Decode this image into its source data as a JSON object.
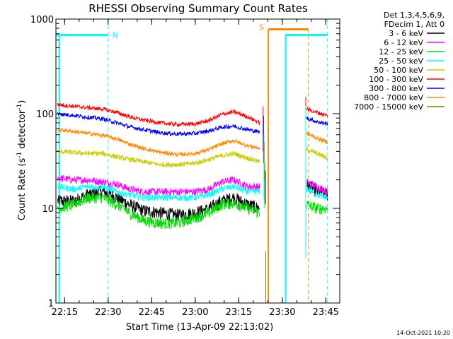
{
  "chart_data": {
    "type": "line",
    "title": "RHESSI Observing Summary Count Rates",
    "xlabel": "Start Time (13-Apr-09 22:13:02)",
    "ylabel": "Count Rate (s",
    "ylabel_sup1": "-1",
    "ylabel_mid": " detector",
    "ylabel_sup2": "-1",
    "ylabel_end": ")",
    "yscale": "log",
    "ylim": [
      1,
      1000
    ],
    "xlim_minutes": [
      22.2,
      23.83
    ],
    "x_ticks": [
      {
        "label": "22:15",
        "value": 22.25
      },
      {
        "label": "22:30",
        "value": 22.5
      },
      {
        "label": "22:45",
        "value": 22.75
      },
      {
        "label": "23:00",
        "value": 23.0
      },
      {
        "label": "23:15",
        "value": 23.25
      },
      {
        "label": "23:30",
        "value": 23.5
      },
      {
        "label": "23:45",
        "value": 23.75
      }
    ],
    "y_ticks": [
      {
        "label": "1",
        "value": 1
      },
      {
        "label": "10",
        "value": 10
      },
      {
        "label": "100",
        "value": 100
      },
      {
        "label": "1000",
        "value": 1000
      }
    ],
    "legend_header": [
      "Det 1,3,4,5,6,9,",
      "FDecim 1, Att 0"
    ],
    "series": [
      {
        "name": "3 - 6 keV",
        "color": "#000000",
        "segments": [
          {
            "x": [
              22.21,
              22.3,
              22.38,
              22.47,
              22.55,
              22.62,
              22.7,
              22.8,
              22.9,
              23.0,
              23.08,
              23.15,
              23.22,
              23.3,
              23.37
            ],
            "y": [
              12,
              12,
              14,
              15,
              13,
              11,
              9.5,
              9,
              8.5,
              9,
              10,
              12,
              13,
              11,
              10
            ]
          },
          {
            "x": [
              23.64,
              23.7,
              23.76
            ],
            "y": [
              18,
              15,
              14
            ]
          }
        ]
      },
      {
        "name": "6 - 12 keV",
        "color": "#ff00ff",
        "segments": [
          {
            "x": [
              22.21,
              22.3,
              22.38,
              22.47,
              22.55,
              22.62,
              22.7,
              22.8,
              22.9,
              23.0,
              23.08,
              23.15,
              23.22,
              23.3,
              23.37
            ],
            "y": [
              21,
              20,
              20,
              19,
              18,
              16,
              15,
              15,
              15,
              15,
              16,
              19,
              20,
              17,
              17
            ]
          },
          {
            "x": [
              23.64,
              23.7,
              23.76
            ],
            "y": [
              19,
              17,
              15
            ]
          }
        ]
      },
      {
        "name": "12 - 25 keV",
        "color": "#00dd00",
        "segments": [
          {
            "x": [
              22.21,
              22.3,
              22.38,
              22.47,
              22.55,
              22.62,
              22.7,
              22.8,
              22.9,
              23.0,
              23.08,
              23.15,
              23.22,
              23.3,
              23.37
            ],
            "y": [
              10,
              11,
              13,
              13,
              11,
              9,
              7.5,
              7,
              7,
              8,
              9,
              11,
              11.5,
              10,
              9
            ]
          },
          {
            "x": [
              23.64,
              23.7,
              23.76
            ],
            "y": [
              11,
              10,
              10
            ]
          }
        ]
      },
      {
        "name": "25 - 50 keV",
        "color": "#00ffff",
        "segments": [
          {
            "x": [
              22.21,
              22.3,
              22.38,
              22.47,
              22.55,
              22.62,
              22.7,
              22.8,
              22.9,
              23.0,
              23.08,
              23.15,
              23.22,
              23.3,
              23.37
            ],
            "y": [
              17,
              16,
              17,
              17,
              15,
              14,
              13,
              13,
              13,
              13,
              14,
              16,
              17,
              15,
              15
            ]
          },
          {
            "x": [
              23.64,
              23.7,
              23.76
            ],
            "y": [
              16,
              14,
              13
            ]
          }
        ]
      },
      {
        "name": "50 - 100 keV",
        "color": "#cccc00",
        "segments": [
          {
            "x": [
              22.21,
              22.3,
              22.38,
              22.47,
              22.55,
              22.62,
              22.7,
              22.8,
              22.9,
              23.0,
              23.08,
              23.15,
              23.22,
              23.3,
              23.37
            ],
            "y": [
              40,
              39,
              38,
              38,
              35,
              33,
              31,
              29,
              29,
              30,
              33,
              36,
              38,
              34,
              31
            ]
          },
          {
            "x": [
              23.64,
              23.7,
              23.76
            ],
            "y": [
              42,
              38,
              34
            ]
          }
        ]
      },
      {
        "name": "100 - 300 keV",
        "color": "#ff0000",
        "segments": [
          {
            "x": [
              22.21,
              22.3,
              22.38,
              22.47,
              22.55,
              22.62,
              22.7,
              22.8,
              22.9,
              23.0,
              23.08,
              23.15,
              23.22,
              23.3,
              23.37
            ],
            "y": [
              125,
              120,
              116,
              112,
              103,
              93,
              86,
              80,
              77,
              78,
              85,
              98,
              105,
              93,
              80
            ]
          },
          {
            "x": [
              23.64,
              23.7,
              23.76
            ],
            "y": [
              112,
              103,
              95
            ]
          }
        ]
      },
      {
        "name": "300 - 800 keV",
        "color": "#0000ff",
        "segments": [
          {
            "x": [
              22.21,
              22.3,
              22.38,
              22.47,
              22.55,
              22.62,
              22.7,
              22.8,
              22.9,
              23.0,
              23.08,
              23.15,
              23.22,
              23.3,
              23.37
            ],
            "y": [
              100,
              96,
              92,
              88,
              80,
              73,
              68,
              63,
              61,
              62,
              66,
              72,
              74,
              68,
              64
            ]
          },
          {
            "x": [
              23.64,
              23.7,
              23.76
            ],
            "y": [
              90,
              82,
              78
            ]
          }
        ]
      },
      {
        "name": "800 - 7000 keV",
        "color": "#ff8800",
        "segments": [
          {
            "x": [
              22.21,
              22.3,
              22.38,
              22.47,
              22.55,
              22.62,
              22.7,
              22.8,
              22.9,
              23.0,
              23.08,
              23.15,
              23.22,
              23.3,
              23.37
            ],
            "y": [
              68,
              65,
              62,
              59,
              54,
              48,
              43,
              39,
              37,
              38,
              42,
              48,
              52,
              46,
              43
            ]
          },
          {
            "x": [
              23.64,
              23.7,
              23.76
            ],
            "y": [
              62,
              55,
              50
            ]
          }
        ]
      },
      {
        "name": "7000 - 15000 keV",
        "color": "#808000",
        "segments": []
      }
    ],
    "annotations": {
      "N_label": "N",
      "S_label": "S",
      "night_bars": [
        {
          "start": 22.2,
          "end": 22.5
        },
        {
          "start": 23.52,
          "end": 23.76
        }
      ],
      "night_edges_dashed": [
        22.5,
        23.76
      ],
      "night_edges_solid": [
        22.22,
        23.52
      ],
      "saa_bars": [
        {
          "start": 23.42,
          "end": 23.65
        }
      ],
      "saa_edges_solid": [
        23.42
      ],
      "saa_edges_dashed": [
        23.65
      ]
    },
    "footer_date": "14-Oct-2021 10:20"
  }
}
